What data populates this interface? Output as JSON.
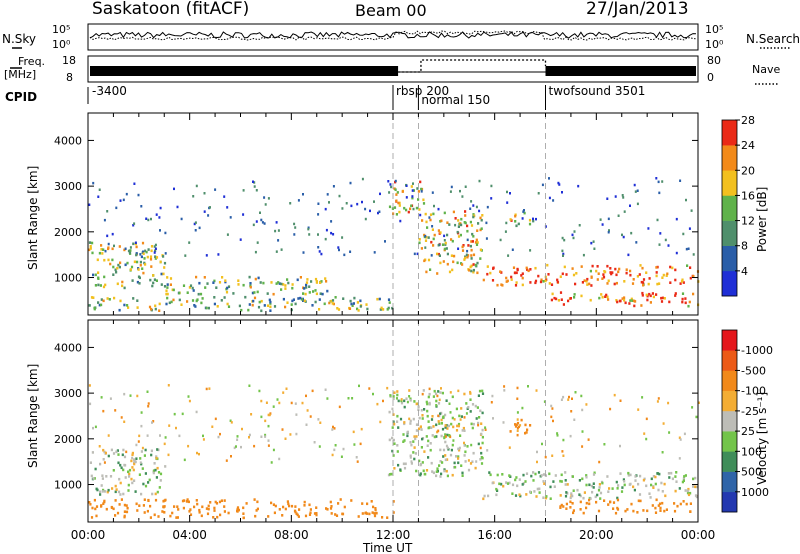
{
  "header": {
    "station": "Saskatoon (fitACF)",
    "beam": "Beam 00",
    "date": "27/Jan/2013"
  },
  "noise_panel": {
    "left_label": "N.Sky",
    "right_label": "N.Search",
    "left_ticks": [
      "10^5",
      "10^0"
    ],
    "right_ticks": [
      "10^5",
      "10^0"
    ]
  },
  "freq_panel": {
    "left_label_1": "Freq.",
    "left_label_2": "[MHz]",
    "right_label": "Nave",
    "left_ticks": [
      "18",
      "8"
    ],
    "right_ticks": [
      "80",
      "0"
    ]
  },
  "cpid": {
    "label": "CPID",
    "segments": [
      {
        "label": "-3400",
        "start_hour": 0
      },
      {
        "label": "rbsp 200",
        "start_hour": 12
      },
      {
        "label": "normal 150",
        "start_hour": 13
      },
      {
        "label": "twofsound 3501",
        "start_hour": 18
      }
    ]
  },
  "chart_data": [
    {
      "type": "heatmap",
      "title": "Power",
      "ylabel": "Slant Range [km]",
      "xlabel": "Time UT",
      "x_ticks": [
        "00:00",
        "04:00",
        "08:00",
        "12:00",
        "16:00",
        "20:00",
        "00:00"
      ],
      "x_range_hours": [
        0,
        24
      ],
      "y_ticks": [
        1000,
        2000,
        3000,
        4000
      ],
      "ylim": [
        180,
        4600
      ],
      "colorbar": {
        "label": "Power [dB]",
        "ticks": [
          4,
          8,
          12,
          16,
          20,
          24,
          28
        ],
        "colors": [
          "#1f2fd6",
          "#2a5ea8",
          "#4f8f6c",
          "#5fb24a",
          "#f2c01f",
          "#f28a1a",
          "#ea2a17"
        ]
      },
      "echo_regions": [
        {
          "t": [
            0.0,
            3.0
          ],
          "range": [
            800,
            1800
          ],
          "level": 0.55
        },
        {
          "t": [
            3.0,
            9.5
          ],
          "range": [
            650,
            1050
          ],
          "level": 0.5
        },
        {
          "t": [
            0.0,
            12.0
          ],
          "range": [
            300,
            600
          ],
          "level": 0.45
        },
        {
          "t": [
            11.8,
            13.2
          ],
          "range": [
            2400,
            3150
          ],
          "level": 0.7
        },
        {
          "t": [
            13.0,
            15.5
          ],
          "range": [
            1100,
            2500
          ],
          "level": 0.6
        },
        {
          "t": [
            15.5,
            24.0
          ],
          "range": [
            850,
            1300
          ],
          "level": 0.85
        },
        {
          "t": [
            18.0,
            24.0
          ],
          "range": [
            400,
            700
          ],
          "level": 0.8
        },
        {
          "t": [
            16.5,
            17.5
          ],
          "range": [
            2150,
            2450
          ],
          "level": 0.6
        }
      ]
    },
    {
      "type": "heatmap",
      "title": "Velocity",
      "ylabel": "Slant Range [km]",
      "xlabel": "Time UT",
      "x_ticks": [
        "00:00",
        "04:00",
        "08:00",
        "12:00",
        "16:00",
        "20:00",
        "00:00"
      ],
      "x_range_hours": [
        0,
        24
      ],
      "y_ticks": [
        1000,
        2000,
        3000,
        4000
      ],
      "ylim": [
        180,
        4600
      ],
      "colorbar": {
        "label": "Velocity [m s^-1]",
        "ticks": [
          1000,
          500,
          100,
          25,
          -25,
          -100,
          -500,
          -1000
        ],
        "colors": [
          "#2338b0",
          "#2f64a8",
          "#3f8d59",
          "#73c44a",
          "#bdbdb7",
          "#f3ad34",
          "#f1891a",
          "#ec5a17",
          "#e4161b"
        ]
      },
      "echo_regions": [
        {
          "t": [
            0.0,
            3.0
          ],
          "range": [
            800,
            1800
          ],
          "velocity": 0
        },
        {
          "t": [
            0.0,
            12.0
          ],
          "range": [
            300,
            700
          ],
          "velocity": -250
        },
        {
          "t": [
            11.8,
            15.5
          ],
          "range": [
            1200,
            3100
          ],
          "velocity": 0
        },
        {
          "t": [
            15.5,
            24.0
          ],
          "range": [
            700,
            1300
          ],
          "velocity": 0
        },
        {
          "t": [
            16.5,
            17.5
          ],
          "range": [
            2150,
            2450
          ],
          "velocity": -400
        },
        {
          "t": [
            18.5,
            24.0
          ],
          "range": [
            400,
            700
          ],
          "velocity": -200
        }
      ]
    }
  ]
}
